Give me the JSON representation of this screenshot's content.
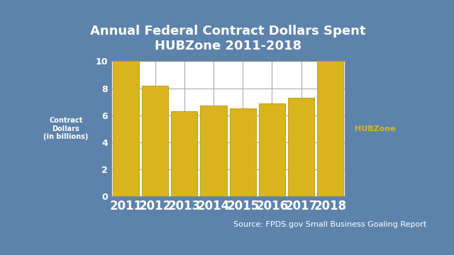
{
  "chart_data": {
    "type": "bar",
    "title": "Annual Federal Contract Dollars Spent\nHUBZone 2011-2018",
    "y_label": "Contract\nDollars\n(in billions)",
    "categories": [
      "2011",
      "2012",
      "2013",
      "2014",
      "2015",
      "2016",
      "2017",
      "2018"
    ],
    "series": [
      {
        "name": "HUBZone",
        "color": "#d9b41c",
        "values": [
          10,
          8.2,
          6.3,
          6.7,
          6.5,
          6.9,
          7.3,
          10
        ]
      }
    ],
    "ylim": [
      0,
      10
    ],
    "yticks": [
      0,
      2,
      4,
      6,
      8,
      10
    ],
    "grid": true,
    "legend": "right",
    "annotations": [
      "Source: FPDS.gov Small Business Goaling Report"
    ]
  }
}
